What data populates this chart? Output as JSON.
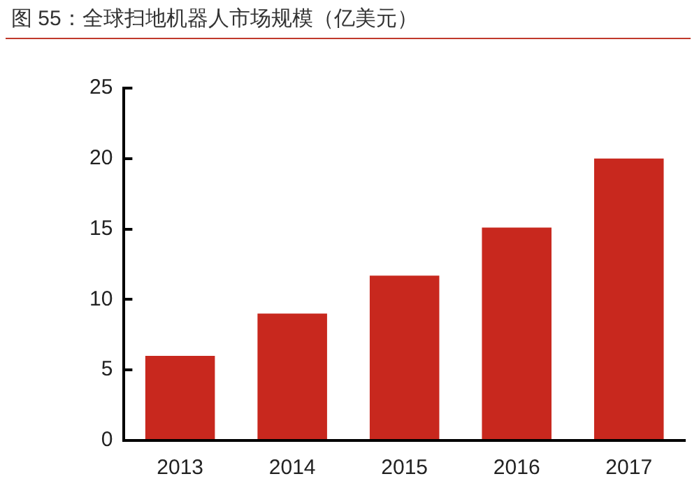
{
  "chart_data": {
    "type": "bar",
    "title": "图 55：全球扫地机器人市场规模（亿美元）",
    "categories": [
      "2013",
      "2014",
      "2015",
      "2016",
      "2017"
    ],
    "values": [
      6,
      9,
      11.7,
      15.1,
      20
    ],
    "color": "#c8281e",
    "ylim": [
      0,
      25
    ],
    "yticks": [
      0,
      5,
      10,
      15,
      20,
      25
    ],
    "grid": false,
    "legend": false
  }
}
